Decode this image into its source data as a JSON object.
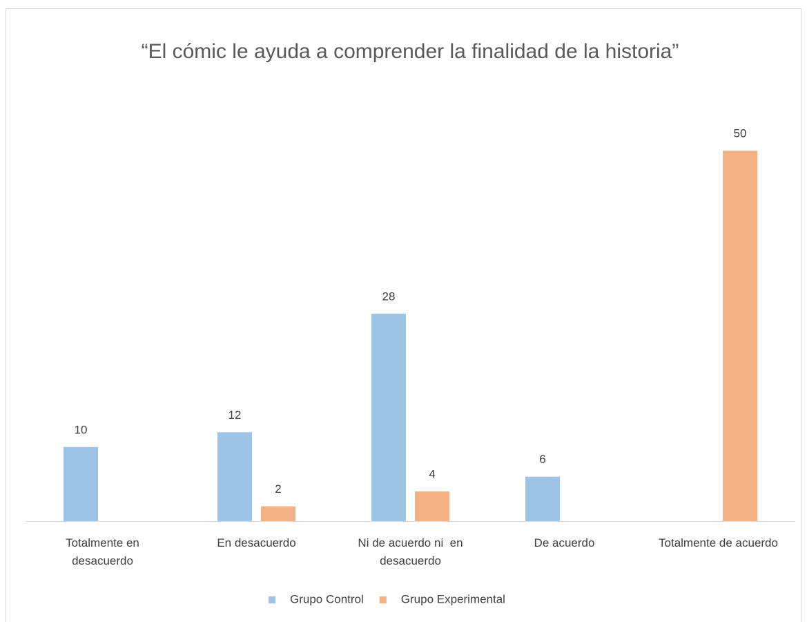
{
  "chart_data": {
    "type": "bar",
    "title": "“El cómic le ayuda a comprender la finalidad de la historia”",
    "categories": [
      "Totalmente en desacuerdo",
      "En desacuerdo",
      "Ni de acuerdo ni  en desacuerdo",
      "De acuerdo",
      "Totalmente de acuerdo"
    ],
    "series": [
      {
        "name": "Grupo Control",
        "color": "#9dc3e6",
        "values": [
          10,
          12,
          28,
          6,
          null
        ]
      },
      {
        "name": "Grupo Experimental",
        "color": "#f4b183",
        "values": [
          null,
          2,
          4,
          null,
          50
        ]
      }
    ],
    "ylim": [
      0,
      50
    ],
    "grid": false,
    "legend": "bottom"
  }
}
